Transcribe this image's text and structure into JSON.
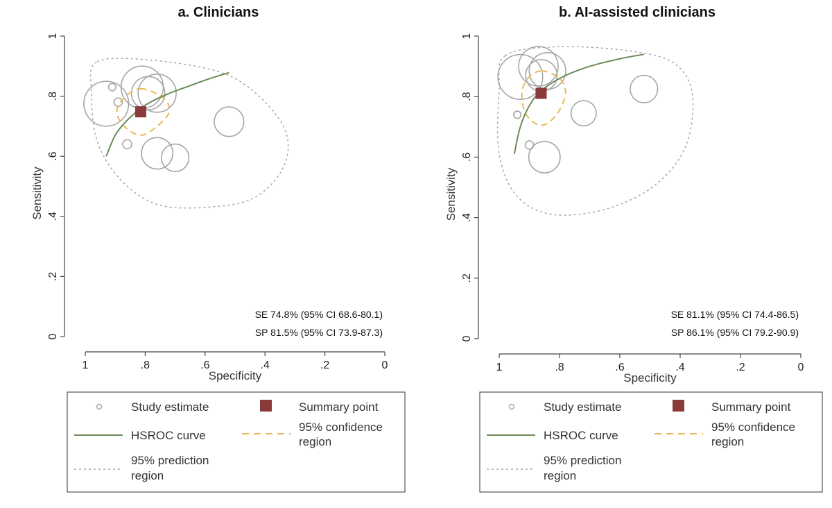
{
  "chart_data": [
    {
      "type": "scatter",
      "title": "a. Clinicians",
      "xlabel": "Specificity",
      "ylabel": "Sensitivity",
      "xlim": [
        1,
        0
      ],
      "ylim": [
        0,
        1
      ],
      "x_ticks": [
        1,
        0.8,
        0.6,
        0.4,
        0.2,
        0
      ],
      "x_tick_labels": [
        "1",
        ".8",
        ".6",
        ".4",
        ".2",
        "0"
      ],
      "y_ticks": [
        0,
        0.2,
        0.4,
        0.6,
        0.8,
        1
      ],
      "y_tick_labels": [
        "0",
        ".2",
        ".4",
        ".6",
        ".8",
        "1"
      ],
      "studies": [
        {
          "specificity": 0.93,
          "sensitivity": 0.775,
          "weight": 8.0
        },
        {
          "specificity": 0.81,
          "sensitivity": 0.83,
          "weight": 7.0
        },
        {
          "specificity": 0.76,
          "sensitivity": 0.81,
          "weight": 5.5
        },
        {
          "specificity": 0.79,
          "sensitivity": 0.81,
          "weight": 4.0
        },
        {
          "specificity": 0.52,
          "sensitivity": 0.715,
          "weight": 3.0
        },
        {
          "specificity": 0.76,
          "sensitivity": 0.61,
          "weight": 3.5
        },
        {
          "specificity": 0.7,
          "sensitivity": 0.595,
          "weight": 2.5
        },
        {
          "specificity": 0.91,
          "sensitivity": 0.83,
          "weight": 0.6
        },
        {
          "specificity": 0.89,
          "sensitivity": 0.78,
          "weight": 0.9
        },
        {
          "specificity": 0.86,
          "sensitivity": 0.64,
          "weight": 1.1
        }
      ],
      "summary_point": {
        "specificity": 0.815,
        "sensitivity": 0.748
      },
      "hsroc_curve": [
        [
          0.93,
          0.6
        ],
        [
          0.9,
          0.67
        ],
        [
          0.86,
          0.72
        ],
        [
          0.8,
          0.77
        ],
        [
          0.73,
          0.805
        ],
        [
          0.65,
          0.835
        ],
        [
          0.58,
          0.86
        ],
        [
          0.52,
          0.878
        ]
      ],
      "confidence_region": [
        [
          0.815,
          0.825
        ],
        [
          0.74,
          0.795
        ],
        [
          0.72,
          0.748
        ],
        [
          0.76,
          0.7
        ],
        [
          0.815,
          0.67
        ],
        [
          0.87,
          0.7
        ],
        [
          0.895,
          0.748
        ],
        [
          0.87,
          0.795
        ]
      ],
      "prediction_region": [
        [
          0.96,
          0.915
        ],
        [
          0.78,
          0.92
        ],
        [
          0.55,
          0.88
        ],
        [
          0.42,
          0.8
        ],
        [
          0.33,
          0.68
        ],
        [
          0.34,
          0.56
        ],
        [
          0.44,
          0.46
        ],
        [
          0.6,
          0.43
        ],
        [
          0.76,
          0.44
        ],
        [
          0.88,
          0.52
        ],
        [
          0.96,
          0.65
        ],
        [
          0.98,
          0.82
        ]
      ],
      "annotations": [
        "SE 74.8% (95% CI 68.6-80.1)",
        "SP 81.5% (95% CI 73.9-87.3)"
      ],
      "legend": {
        "study": "Study estimate",
        "summary": "Summary point",
        "hsroc": "HSROC curve",
        "confidence": [
          "95% confidence",
          "region"
        ],
        "prediction": [
          "95% prediction",
          "region"
        ]
      }
    },
    {
      "type": "scatter",
      "title": "b. AI-assisted clinicians",
      "xlabel": "Specificity",
      "ylabel": "Sensitivity",
      "xlim": [
        1,
        0
      ],
      "ylim": [
        0,
        1
      ],
      "x_ticks": [
        1,
        0.8,
        0.6,
        0.4,
        0.2,
        0
      ],
      "x_tick_labels": [
        "1",
        ".8",
        ".6",
        ".4",
        ".2",
        "0"
      ],
      "y_ticks": [
        0,
        0.2,
        0.4,
        0.6,
        0.8,
        1
      ],
      "y_tick_labels": [
        "0",
        ".2",
        ".4",
        ".6",
        ".8",
        "1"
      ],
      "studies": [
        {
          "specificity": 0.93,
          "sensitivity": 0.865,
          "weight": 8.0
        },
        {
          "specificity": 0.87,
          "sensitivity": 0.9,
          "weight": 6.0
        },
        {
          "specificity": 0.84,
          "sensitivity": 0.885,
          "weight": 5.0
        },
        {
          "specificity": 0.86,
          "sensitivity": 0.87,
          "weight": 3.5
        },
        {
          "specificity": 0.52,
          "sensitivity": 0.825,
          "weight": 2.5
        },
        {
          "specificity": 0.72,
          "sensitivity": 0.745,
          "weight": 2.0
        },
        {
          "specificity": 0.85,
          "sensitivity": 0.6,
          "weight": 3.5
        },
        {
          "specificity": 0.94,
          "sensitivity": 0.74,
          "weight": 0.6
        },
        {
          "specificity": 0.9,
          "sensitivity": 0.64,
          "weight": 0.9
        }
      ],
      "summary_point": {
        "specificity": 0.861,
        "sensitivity": 0.811
      },
      "hsroc_curve": [
        [
          0.95,
          0.61
        ],
        [
          0.93,
          0.7
        ],
        [
          0.9,
          0.77
        ],
        [
          0.86,
          0.82
        ],
        [
          0.79,
          0.865
        ],
        [
          0.7,
          0.9
        ],
        [
          0.6,
          0.925
        ],
        [
          0.52,
          0.94
        ]
      ],
      "confidence_region": [
        [
          0.86,
          0.885
        ],
        [
          0.8,
          0.86
        ],
        [
          0.78,
          0.81
        ],
        [
          0.81,
          0.74
        ],
        [
          0.86,
          0.705
        ],
        [
          0.91,
          0.74
        ],
        [
          0.925,
          0.81
        ],
        [
          0.905,
          0.86
        ]
      ],
      "prediction_region": [
        [
          0.98,
          0.935
        ],
        [
          0.8,
          0.965
        ],
        [
          0.56,
          0.95
        ],
        [
          0.42,
          0.91
        ],
        [
          0.36,
          0.81
        ],
        [
          0.38,
          0.64
        ],
        [
          0.48,
          0.51
        ],
        [
          0.64,
          0.43
        ],
        [
          0.82,
          0.41
        ],
        [
          0.94,
          0.47
        ],
        [
          1.0,
          0.61
        ],
        [
          1.0,
          0.82
        ]
      ],
      "annotations": [
        "SE 81.1% (95% CI 74.4-86.5)",
        "SP 86.1% (95% CI 79.2-90.9)"
      ],
      "legend": {
        "study": "Study estimate",
        "summary": "Summary point",
        "hsroc": "HSROC curve",
        "confidence": [
          "95% confidence",
          "region"
        ],
        "prediction": [
          "95% prediction",
          "region"
        ]
      }
    }
  ],
  "colors": {
    "study_circle": "#a6a6a6",
    "summary_point": "#8b3a3a",
    "hsroc_curve": "#6a8a5a",
    "confidence_region": "#e8b65a",
    "prediction_region": "#a6a6a6",
    "axis": "#444444"
  }
}
